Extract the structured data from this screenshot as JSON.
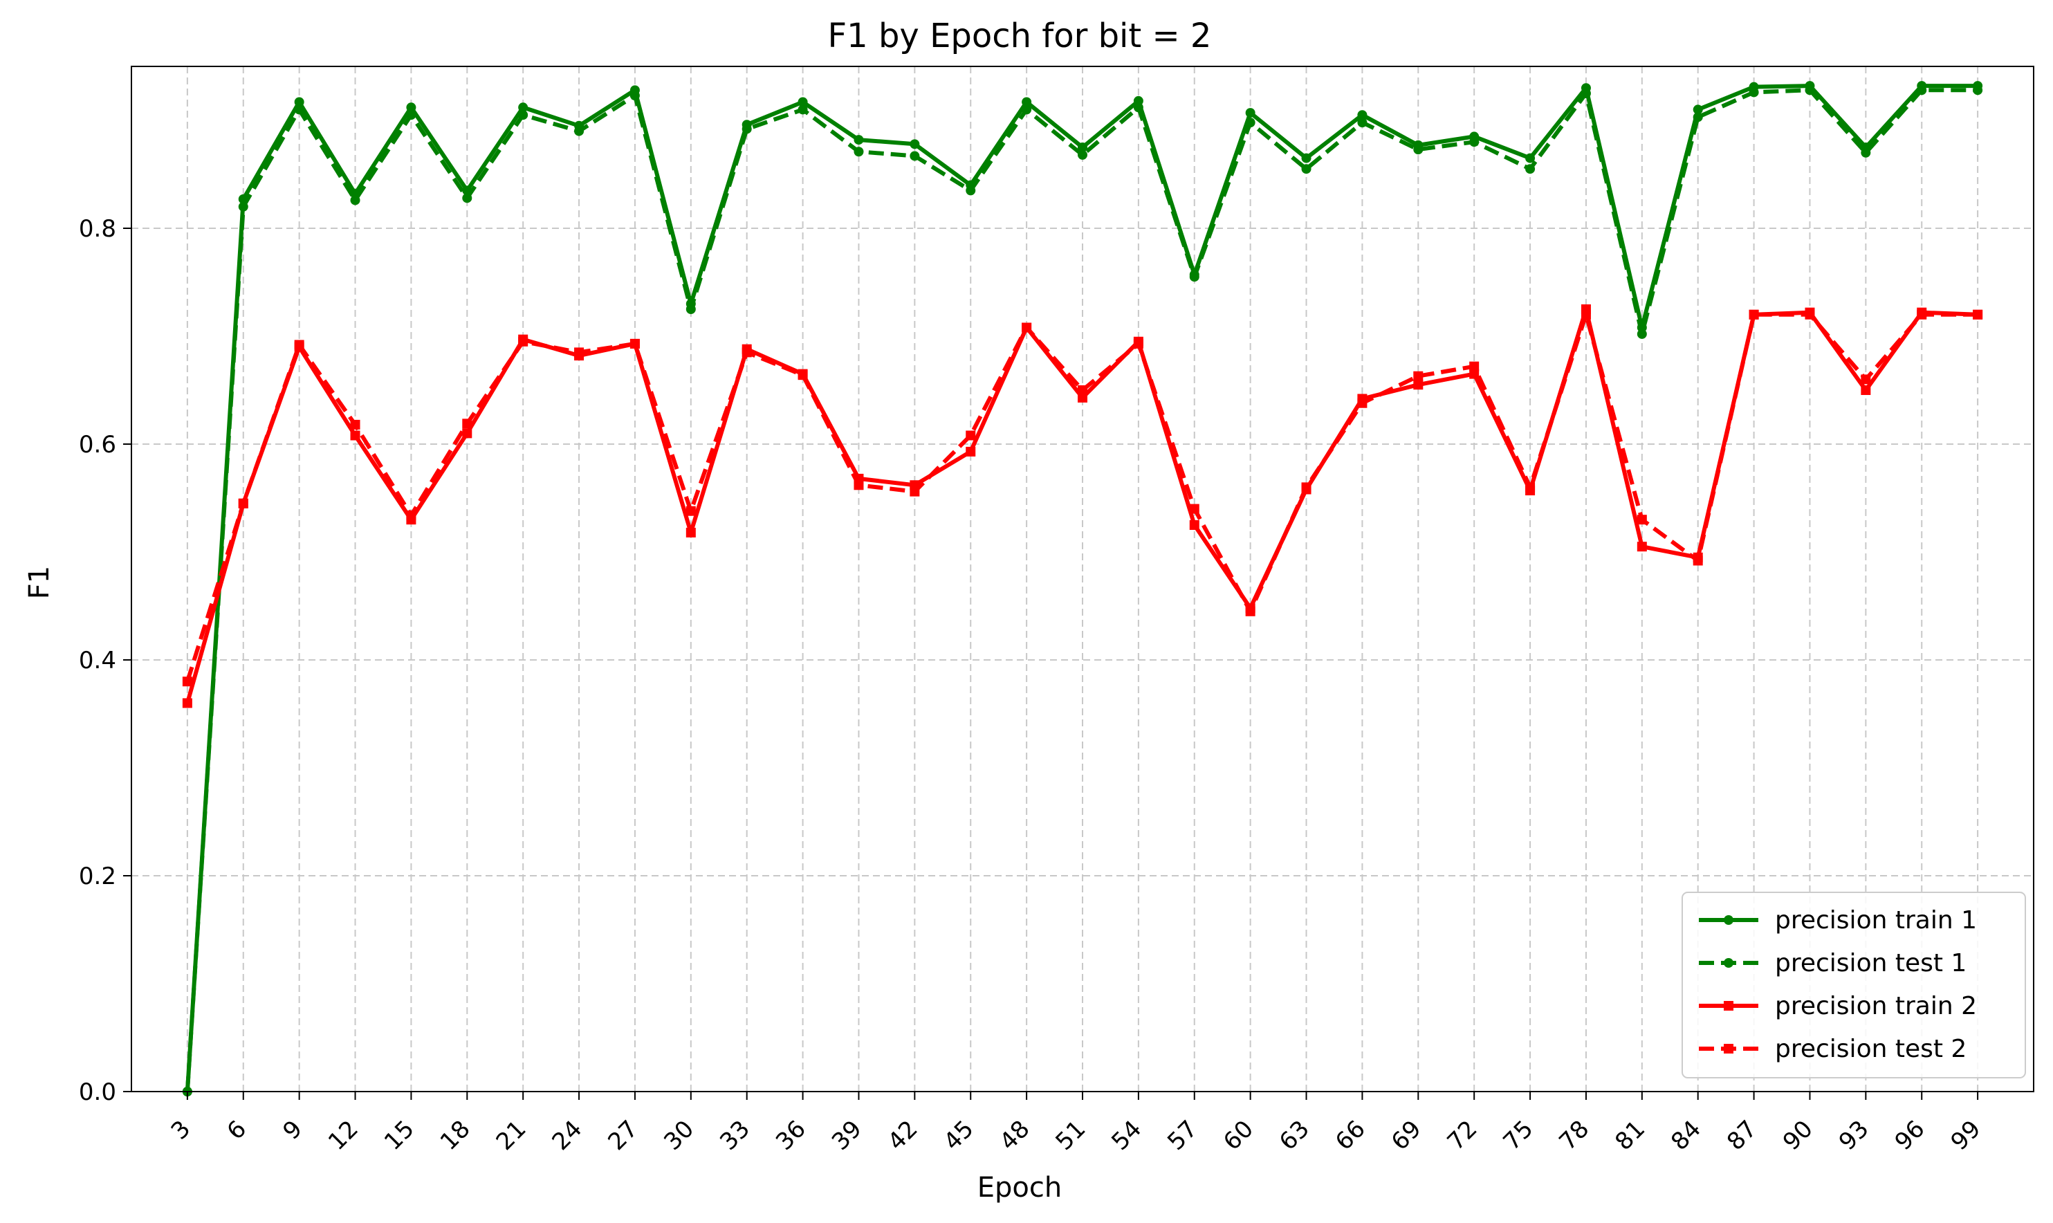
{
  "chart_data": {
    "type": "line",
    "title": "F1 by Epoch for bit = 2",
    "xlabel": "Epoch",
    "ylabel": "F1",
    "x": [
      3,
      6,
      9,
      12,
      15,
      18,
      21,
      24,
      27,
      30,
      33,
      36,
      39,
      42,
      45,
      48,
      51,
      54,
      57,
      60,
      63,
      66,
      69,
      72,
      75,
      78,
      81,
      84,
      87,
      90,
      93,
      96,
      99
    ],
    "xlim": [
      0,
      102
    ],
    "ylim": [
      0,
      0.95
    ],
    "yticks": [
      "0.0",
      "0.2",
      "0.4",
      "0.6",
      "0.8"
    ],
    "ytick_values": [
      0.0,
      0.2,
      0.4,
      0.6,
      0.8
    ],
    "grid": true,
    "legend_position": "bottom-right",
    "series": [
      {
        "name": "precision train 1",
        "color": "#008000",
        "linestyle": "solid",
        "marker": "circle",
        "values": [
          0.0,
          0.827,
          0.917,
          0.832,
          0.912,
          0.835,
          0.912,
          0.895,
          0.928,
          0.73,
          0.896,
          0.917,
          0.882,
          0.878,
          0.84,
          0.917,
          0.875,
          0.918,
          0.757,
          0.907,
          0.865,
          0.905,
          0.877,
          0.885,
          0.865,
          0.93,
          0.708,
          0.91,
          0.931,
          0.932,
          0.875,
          0.932,
          0.932
        ]
      },
      {
        "name": "precision test 1",
        "color": "#008000",
        "linestyle": "dashed",
        "marker": "circle",
        "values": [
          0.0,
          0.82,
          0.91,
          0.826,
          0.905,
          0.828,
          0.905,
          0.89,
          0.923,
          0.725,
          0.892,
          0.91,
          0.871,
          0.867,
          0.835,
          0.91,
          0.868,
          0.912,
          0.755,
          0.898,
          0.855,
          0.898,
          0.873,
          0.88,
          0.855,
          0.925,
          0.702,
          0.903,
          0.926,
          0.928,
          0.87,
          0.928,
          0.928
        ]
      },
      {
        "name": "precision train 2",
        "color": "#ff0000",
        "linestyle": "solid",
        "marker": "square",
        "values": [
          0.36,
          0.545,
          0.69,
          0.608,
          0.53,
          0.61,
          0.697,
          0.682,
          0.693,
          0.518,
          0.688,
          0.665,
          0.568,
          0.562,
          0.593,
          0.708,
          0.643,
          0.695,
          0.525,
          0.448,
          0.558,
          0.642,
          0.655,
          0.665,
          0.557,
          0.725,
          0.505,
          0.495,
          0.72,
          0.722,
          0.65,
          0.722,
          0.72
        ]
      },
      {
        "name": "precision test 2",
        "color": "#ff0000",
        "linestyle": "dashed",
        "marker": "square",
        "values": [
          0.38,
          0.545,
          0.692,
          0.618,
          0.534,
          0.619,
          0.695,
          0.685,
          0.693,
          0.538,
          0.685,
          0.664,
          0.562,
          0.556,
          0.608,
          0.708,
          0.65,
          0.693,
          0.54,
          0.445,
          0.56,
          0.638,
          0.663,
          0.672,
          0.56,
          0.72,
          0.53,
          0.492,
          0.72,
          0.72,
          0.66,
          0.72,
          0.72
        ]
      }
    ]
  }
}
